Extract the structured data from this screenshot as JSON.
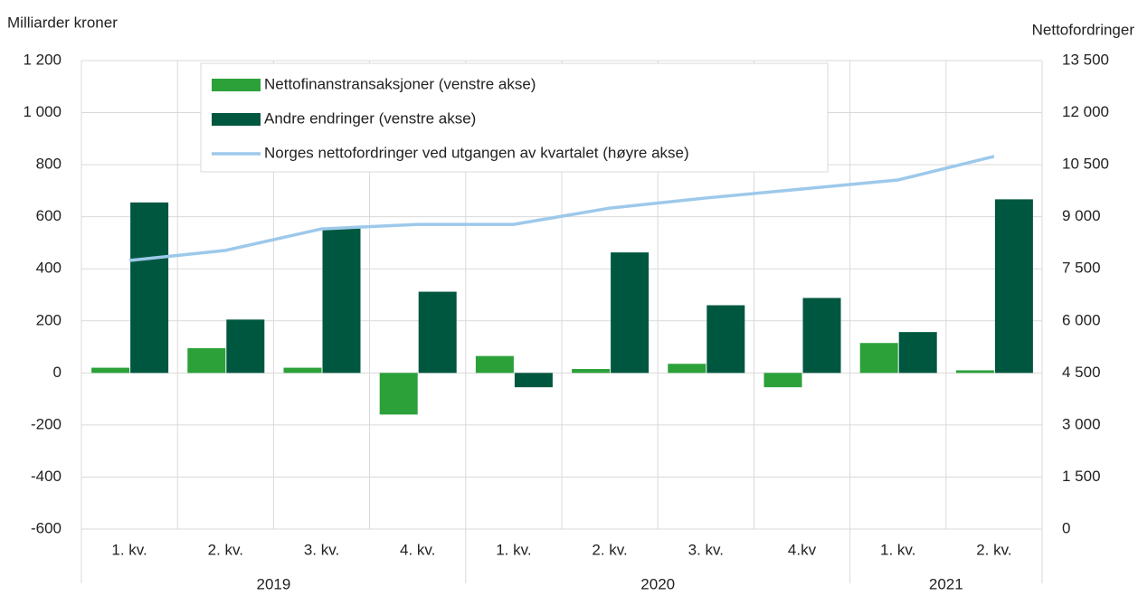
{
  "chart_data": {
    "type": "bar",
    "y_label": "Milliarder kroner",
    "y2_label": "Nettofordringer",
    "categories": [
      "1. kv.",
      "2. kv.",
      "3. kv.",
      "4. kv.",
      "1. kv.",
      "2. kv.",
      "3. kv.",
      "4.kv",
      "1. kv.",
      "2. kv."
    ],
    "groups": [
      {
        "label": "2019",
        "count": 4
      },
      {
        "label": "2020",
        "count": 4
      },
      {
        "label": "2021",
        "count": 2
      }
    ],
    "series": [
      {
        "name": "Nettofinanstransaksjoner (venstre akse)",
        "type": "bar",
        "color": "#2ca13a",
        "values": [
          20,
          95,
          20,
          -160,
          65,
          15,
          35,
          -55,
          115,
          10
        ]
      },
      {
        "name": "Andre endringer (venstre akse)",
        "type": "bar",
        "color": "#00573f",
        "values": [
          655,
          205,
          555,
          312,
          -55,
          463,
          260,
          288,
          157,
          667
        ]
      },
      {
        "name": "Norges nettofordringer ved utgangen av kvartalet (høyre akse)",
        "type": "line",
        "axis": "y2",
        "color": "#9dc9ea",
        "values": [
          7740,
          8030,
          8650,
          8780,
          8780,
          9250,
          9540,
          9800,
          10060,
          10740
        ]
      }
    ],
    "ylim": [
      -600,
      1200
    ],
    "yticks": [
      -600,
      -400,
      -200,
      0,
      200,
      400,
      600,
      800,
      {
        "value": 1000,
        "label": "1 000"
      },
      {
        "value": 1200,
        "label": "1 200"
      }
    ],
    "y2lim": [
      0,
      13500
    ],
    "y2ticks": [
      0,
      {
        "value": 1500,
        "label": "1 500"
      },
      {
        "value": 3000,
        "label": "3 000"
      },
      {
        "value": 4500,
        "label": "4 500"
      },
      {
        "value": 6000,
        "label": "6 000"
      },
      {
        "value": 7500,
        "label": "7 500"
      },
      {
        "value": 9000,
        "label": "9 000"
      },
      {
        "value": 10500,
        "label": "10 500"
      },
      {
        "value": 12000,
        "label": "12 000"
      },
      {
        "value": 13500,
        "label": "13 500"
      }
    ],
    "grid": true,
    "legend": "top-left"
  }
}
